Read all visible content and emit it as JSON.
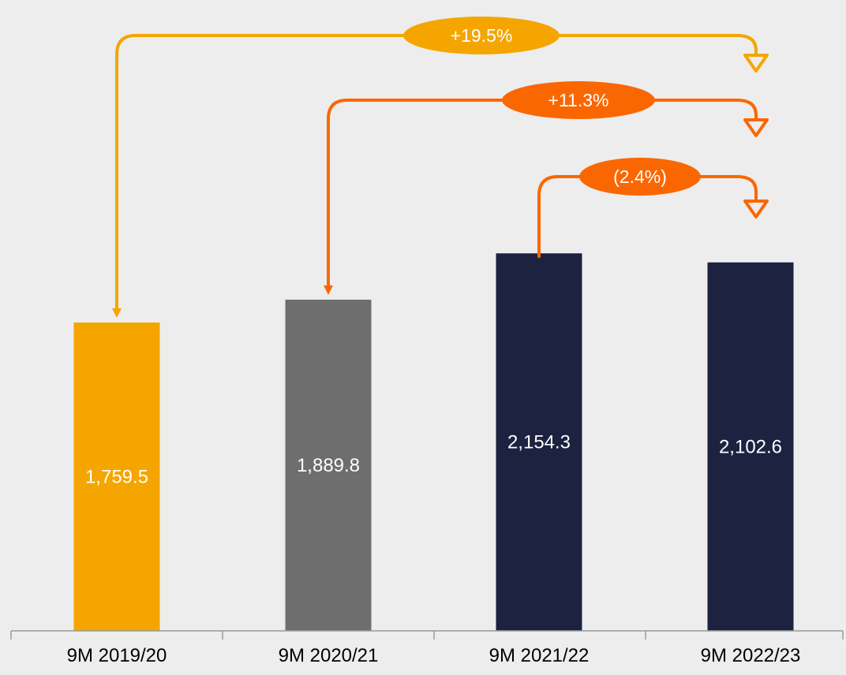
{
  "chart_data": {
    "type": "bar",
    "categories": [
      "9M 2019/20",
      "9M 2020/21",
      "9M 2021/22",
      "9M 2022/23"
    ],
    "values": [
      1759.5,
      1889.8,
      2154.3,
      2102.6
    ],
    "value_labels": [
      "1,759.5",
      "1,889.8",
      "2,154.3",
      "2,102.6"
    ],
    "title": "",
    "xlabel": "",
    "ylabel": "",
    "grid": false,
    "legend": "none",
    "bar_colors": [
      "#f5a500",
      "#6e6e6e",
      "#1c2240",
      "#1c2240"
    ],
    "comparisons": [
      {
        "from": 0,
        "to": 3,
        "label": "+19.5%",
        "color": "#f5a500"
      },
      {
        "from": 1,
        "to": 3,
        "label": "+11.3%",
        "color": "#fa6700"
      },
      {
        "from": 2,
        "to": 3,
        "label": "(2.4%)",
        "color": "#fa6700"
      }
    ]
  },
  "colors": {
    "background": "#ededed",
    "axis": "#9a9a9a",
    "label_text": "#ffffff",
    "tick_text": "#000000"
  }
}
